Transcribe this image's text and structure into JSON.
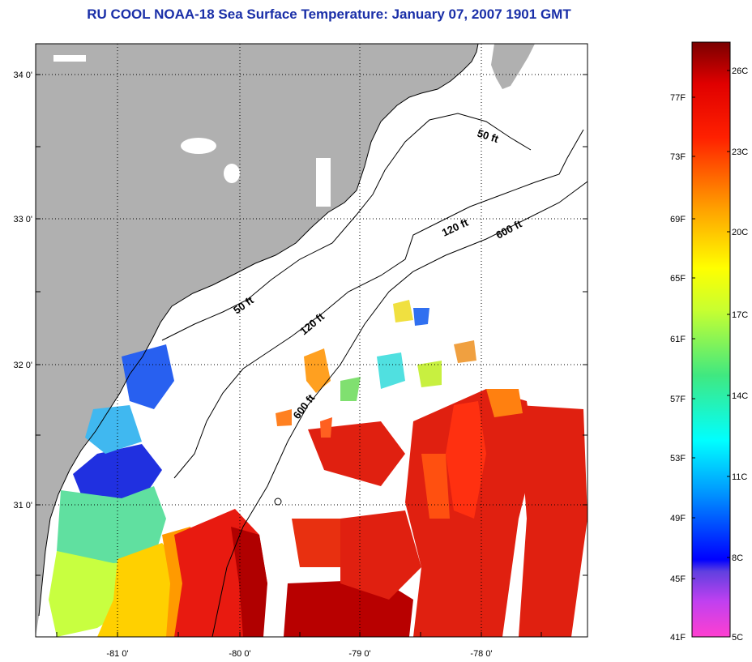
{
  "title": "RU COOL  NOAA-18  Sea Surface Temperature:  January 07, 2007 1901 GMT",
  "axes": {
    "x_ticks": [
      "-81 0'",
      "-80 0'",
      "-79 0'",
      "-78 0'"
    ],
    "y_ticks": [
      "34 0'",
      "33 0'",
      "32 0'",
      "31 0'"
    ]
  },
  "contour_labels": [
    "50 ft",
    "50 ft",
    "120 ft",
    "120 ft",
    "600 ft",
    "600 ft"
  ],
  "colorbar": {
    "f_labels": [
      "77F",
      "73F",
      "69F",
      "65F",
      "61F",
      "57F",
      "53F",
      "49F",
      "45F",
      "41F"
    ],
    "c_labels": [
      "26C",
      "23C",
      "20C",
      "17C",
      "14C",
      "11C",
      "8C",
      "5C"
    ]
  },
  "colors": {
    "land": "#b0b0b0",
    "ocean_missing": "#ffffff",
    "title": "#1a2fa8"
  }
}
